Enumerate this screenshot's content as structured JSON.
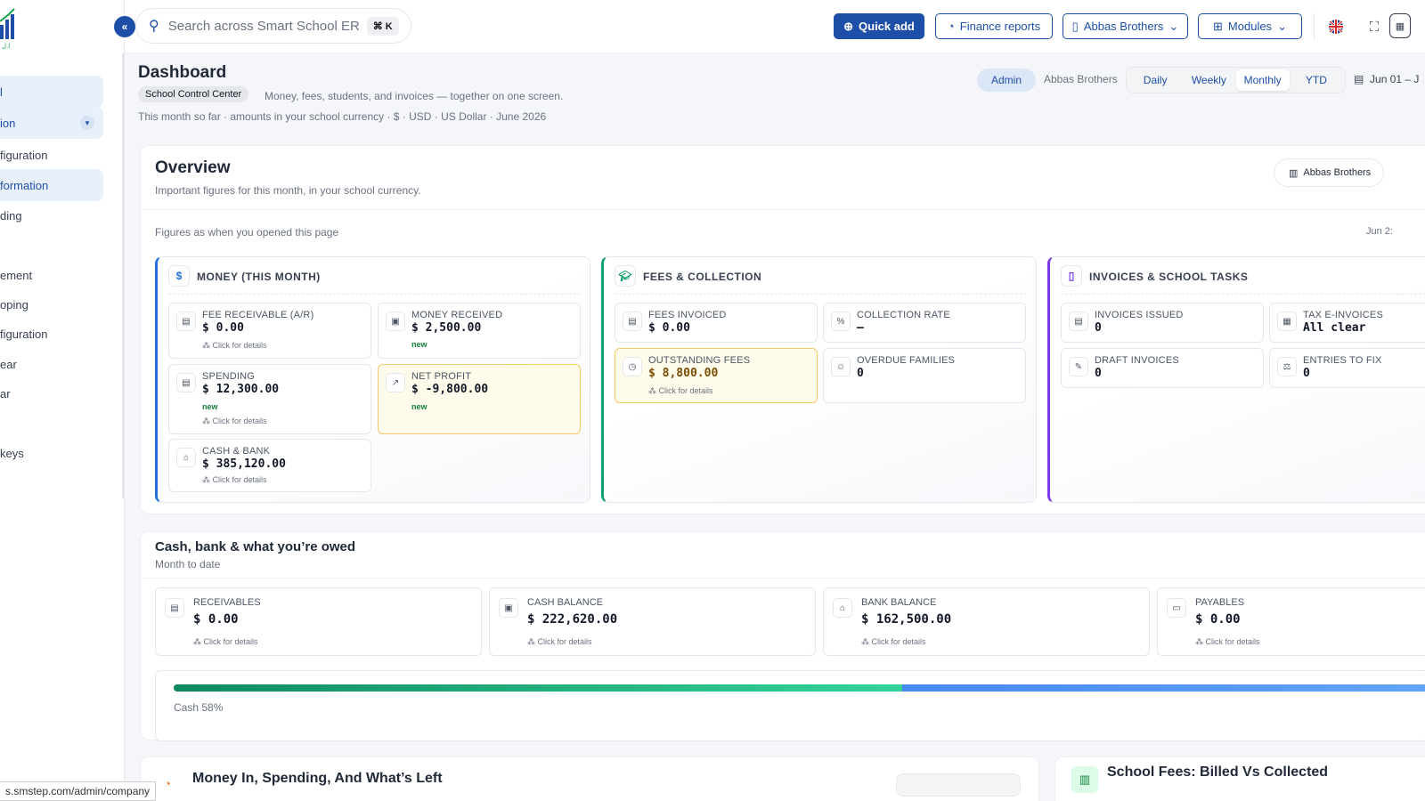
{
  "sidebar": {
    "items": [
      {
        "label": "l",
        "active": true
      },
      {
        "label": "ion",
        "active": true,
        "expandable": true
      },
      {
        "label": "figuration"
      },
      {
        "label": "formation",
        "active": true
      },
      {
        "label": "ding"
      },
      {
        "label": "ement"
      },
      {
        "label": "oping"
      },
      {
        "label": "figuration"
      },
      {
        "label": "ear"
      },
      {
        "label": "ar"
      },
      {
        "label": ""
      },
      {
        "label": "keys"
      }
    ]
  },
  "topbar": {
    "search_placeholder": "Search across Smart School ER",
    "search_shortcut": "⌘ K",
    "quick_add": "Quick add",
    "finance_reports": "Finance reports",
    "org_select": "Abbas Brothers",
    "modules": "Modules"
  },
  "header": {
    "title": "Dashboard",
    "tag": "School Control Center",
    "subtitle": "Money, fees, students, and invoices — together on one screen.",
    "meta": "This month so far · amounts in your school currency · $ · USD · US Dollar · June 2026",
    "role": "Admin",
    "org": "Abbas Brothers",
    "periods": [
      "Daily",
      "Weekly",
      "Monthly",
      "YTD"
    ],
    "selected_period": "Monthly",
    "date_range": "Jun 01 – J"
  },
  "overview": {
    "title": "Overview",
    "subtitle": "Important figures for this month, in your school currency.",
    "org_button": "Abbas Brothers",
    "as_of": "Figures as when you opened this page",
    "as_of_date": "Jun  2:",
    "click_label": "Click for details",
    "new_label": "new",
    "groups": {
      "money": {
        "title": "MONEY (THIS MONTH)",
        "tiles": {
          "fee_receivable": {
            "label": "FEE RECEIVABLE (A/R)",
            "value": "$ 0.00"
          },
          "money_received": {
            "label": "MONEY RECEIVED",
            "value": "$ 2,500.00"
          },
          "spending": {
            "label": "SPENDING",
            "value": "$ 12,300.00"
          },
          "net_profit": {
            "label": "NET PROFIT",
            "value": "$ -9,800.00"
          },
          "cash_bank": {
            "label": "CASH & BANK",
            "value": "$ 385,120.00"
          }
        }
      },
      "fees": {
        "title": "FEES & COLLECTION",
        "tiles": {
          "fees_invoiced": {
            "label": "FEES INVOICED",
            "value": "$ 0.00"
          },
          "collection_rate": {
            "label": "COLLECTION RATE",
            "value": "–"
          },
          "outstanding_fees": {
            "label": "OUTSTANDING FEES",
            "value": "$ 8,800.00"
          },
          "overdue_families": {
            "label": "OVERDUE FAMILIES",
            "value": "0"
          }
        }
      },
      "invoices": {
        "title": "INVOICES & SCHOOL TASKS",
        "tiles": {
          "invoices_issued": {
            "label": "INVOICES ISSUED",
            "value": "0"
          },
          "tax_einvoices": {
            "label": "TAX E-INVOICES",
            "value": "All clear"
          },
          "draft_invoices": {
            "label": "DRAFT INVOICES",
            "value": "0"
          },
          "entries_to_fix": {
            "label": "ENTRIES TO FIX",
            "value": "0"
          }
        }
      }
    }
  },
  "cash_bank": {
    "title": "Cash, bank & what you’re owed",
    "subtitle": "Month to date",
    "tiles": [
      {
        "label": "RECEIVABLES",
        "value": "$ 0.00"
      },
      {
        "label": "CASH BALANCE",
        "value": "$ 222,620.00"
      },
      {
        "label": "BANK BALANCE",
        "value": "$ 162,500.00"
      },
      {
        "label": "PAYABLES",
        "value": "$ 0.00"
      }
    ],
    "cash_share": 0.58,
    "cash_share_label": "Cash 58%"
  },
  "bottom": {
    "left_title": "Money In, Spending, And What’s Left",
    "right_title": "School Fees: Billed Vs Collected"
  },
  "status_bar_url": "s.smstep.com/admin/company",
  "colors": {
    "brand": "#1e4fa8",
    "money_accent": "#1e6fd9",
    "fees_accent": "#14a06a",
    "invoice_accent": "#7c3aed",
    "warn_bg": "#fffbeb"
  }
}
